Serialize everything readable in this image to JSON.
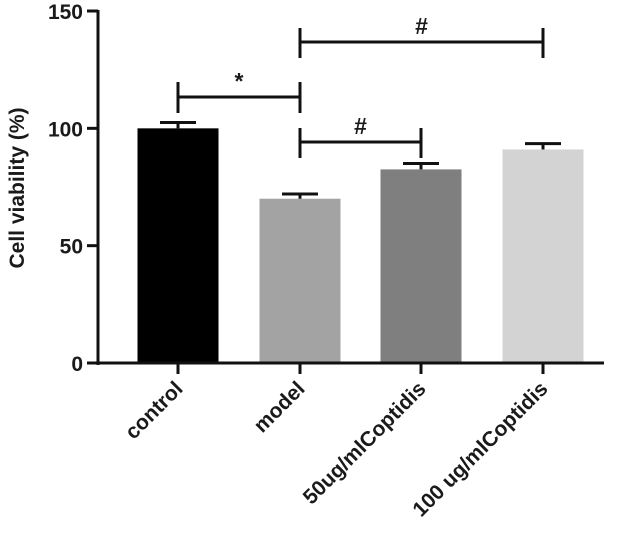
{
  "chart_data": {
    "type": "bar",
    "title": "",
    "xlabel": "",
    "ylabel": "Cell viability (%)",
    "ylim": [
      0,
      150
    ],
    "yticks": [
      0,
      50,
      100,
      150
    ],
    "categories": [
      "control",
      "model",
      "50ug/mlCoptidis",
      "100 ug/mlCoptidis"
    ],
    "values": [
      100,
      70,
      82.5,
      91
    ],
    "errors": [
      2.5,
      2,
      2.5,
      2.5
    ],
    "colors": [
      "#000000",
      "#a3a3a3",
      "#7f7f7f",
      "#d3d3d3"
    ],
    "grid": false,
    "significance": [
      {
        "label": "*",
        "from": 0,
        "to": 1
      },
      {
        "label": "#",
        "from": 1,
        "to": 2
      },
      {
        "label": "#",
        "from": 1,
        "to": 3
      }
    ]
  }
}
